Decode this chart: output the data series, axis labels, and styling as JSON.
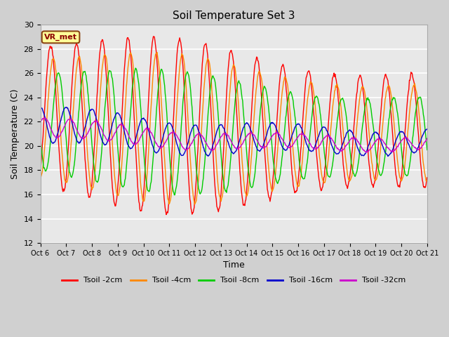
{
  "title": "Soil Temperature Set 3",
  "xlabel": "Time",
  "ylabel": "Soil Temperature (C)",
  "ylim": [
    12,
    30
  ],
  "yticks": [
    12,
    14,
    16,
    18,
    20,
    22,
    24,
    26,
    28,
    30
  ],
  "x_labels": [
    "Oct 6",
    "Oct 7",
    "Oct 8",
    "Oct 9",
    "Oct 10",
    "Oct 11",
    "Oct 12",
    "Oct 13",
    "Oct 14",
    "Oct 15",
    "Oct 16",
    "Oct 17",
    "Oct 18",
    "Oct 19",
    "Oct 20",
    "Oct 21"
  ],
  "colors": {
    "Tsoil -2cm": "#ff0000",
    "Tsoil -4cm": "#ff8800",
    "Tsoil -8cm": "#00cc00",
    "Tsoil -16cm": "#0000cc",
    "Tsoil -32cm": "#cc00cc"
  },
  "fig_bg": "#d0d0d0",
  "ax_bg": "#e8e8e8",
  "annotation_text": "VR_met",
  "annotation_bg": "#ffff99",
  "annotation_border": "#8B4513",
  "grid_color": "#ffffff",
  "figsize": [
    6.4,
    4.8
  ],
  "dpi": 100
}
